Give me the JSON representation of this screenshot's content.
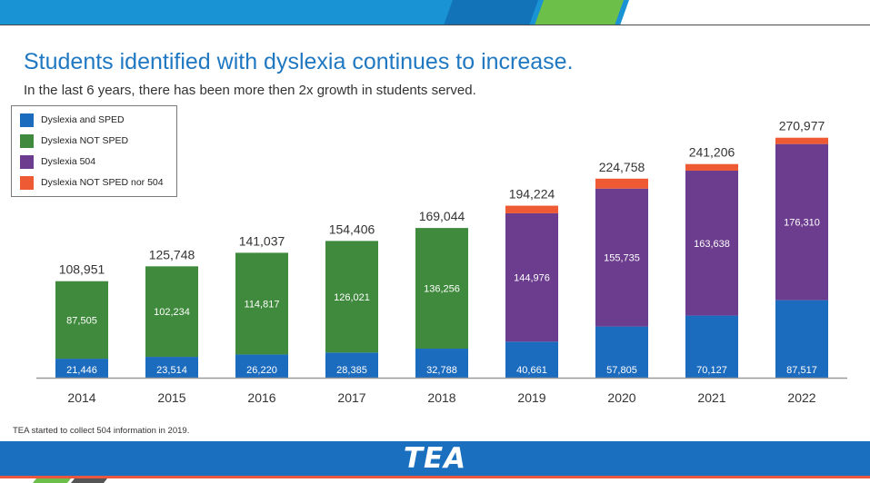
{
  "title": "Students identified with dyslexia continues to increase.",
  "subtitle": "In the last 6 years, there has been more then 2x growth in students served.",
  "footnote": "TEA started to collect 504 information in 2019.",
  "logo_text": "TEA",
  "colors": {
    "header_blue": "#1a93d4",
    "header_dark_blue": "#1273b8",
    "header_green": "#6cc04a",
    "footer_blue": "#1a6fbf",
    "footer_red": "#e8573f",
    "title_blue": "#1f78c1"
  },
  "chart_data": {
    "type": "bar",
    "stacked": true,
    "categories": [
      "2014",
      "2015",
      "2016",
      "2017",
      "2018",
      "2019",
      "2020",
      "2021",
      "2022"
    ],
    "series": [
      {
        "name": "Dyslexia and SPED",
        "color": "#1b6bbf",
        "values": [
          21446,
          23514,
          26220,
          28385,
          32788,
          40661,
          57805,
          70127,
          87517
        ],
        "labels": [
          "21,446",
          "23,514",
          "26,220",
          "28,385",
          "32,788",
          "40,661",
          "57,805",
          "70,127",
          "87,517"
        ]
      },
      {
        "name": "Dyslexia NOT SPED",
        "color": "#3f8a3c",
        "values": [
          87505,
          102234,
          114817,
          126021,
          136256,
          0,
          0,
          0,
          0
        ],
        "labels": [
          "87,505",
          "102,234",
          "114,817",
          "126,021",
          "136,256",
          "",
          "",
          "",
          ""
        ]
      },
      {
        "name": "Dyslexia 504",
        "color": "#6c3d8e",
        "values": [
          0,
          0,
          0,
          0,
          0,
          144976,
          155735,
          163638,
          176310
        ],
        "labels": [
          "",
          "",
          "",
          "",
          "",
          "144,976",
          "155,735",
          "163,638",
          "176,310"
        ]
      },
      {
        "name": "Dyslexia NOT SPED nor 504",
        "color": "#ee5a33",
        "values": [
          0,
          0,
          0,
          0,
          0,
          8587,
          11218,
          7441,
          7150
        ],
        "labels": [
          "",
          "",
          "",
          "",
          "",
          "",
          "",
          "",
          ""
        ]
      }
    ],
    "totals": [
      108951,
      125748,
      141037,
      154406,
      169044,
      194224,
      224758,
      241206,
      270977
    ],
    "total_labels": [
      "108,951",
      "125,748",
      "141,037",
      "154,406",
      "169,044",
      "194,224",
      "224,758",
      "241,206",
      "270,977"
    ],
    "ylim": [
      0,
      285000
    ],
    "grid": false,
    "legend_position": "top-left"
  }
}
